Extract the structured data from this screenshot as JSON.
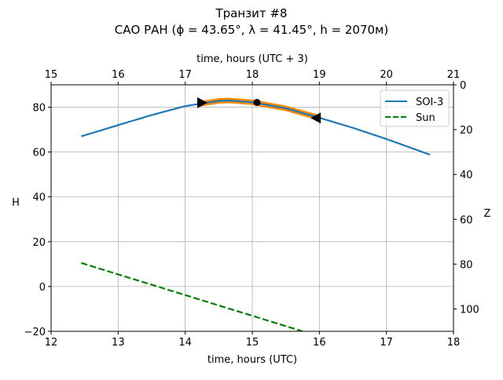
{
  "chart_data": {
    "type": "line",
    "title": [
      "Транзит #8",
      "САО РАН (ϕ = 43.65°, λ = 41.45°, h = 2070м)"
    ],
    "xlabel": "time, hours (UTC)",
    "xlabel_top": "time, hours (UTC + 3)",
    "ylabel": "H",
    "ylabel_right": "Z",
    "xlim": [
      12,
      18
    ],
    "xlim_top": [
      15,
      21
    ],
    "ylim": [
      -20,
      90
    ],
    "ylim_right": [
      110,
      0
    ],
    "xticks": [
      "12",
      "13",
      "14",
      "15",
      "16",
      "17",
      "18"
    ],
    "xticks_top": [
      "15",
      "16",
      "17",
      "18",
      "19",
      "20",
      "21"
    ],
    "yticks": [
      "-20",
      "0",
      "20",
      "40",
      "60",
      "80"
    ],
    "yticks_right": [
      "0",
      "20",
      "40",
      "60",
      "80",
      "100"
    ],
    "grid": true,
    "legend": {
      "position": "top-right",
      "entries": [
        "SOI-3",
        "Sun"
      ]
    },
    "series": [
      {
        "name": "SOI-3",
        "color": "#1f77b4",
        "style": "solid",
        "x": [
          12.45,
          13.0,
          13.5,
          14.0,
          14.5,
          14.65,
          15.0,
          15.5,
          16.0,
          16.5,
          17.0,
          17.65
        ],
        "y": [
          67.0,
          72.0,
          76.5,
          80.5,
          82.8,
          83.0,
          82.2,
          79.5,
          75.3,
          70.8,
          65.8,
          58.8
        ]
      },
      {
        "name": "Sun",
        "color": "#008000",
        "style": "dashed",
        "x": [
          12.45,
          15.75
        ],
        "y": [
          10.5,
          -20.0
        ]
      }
    ],
    "highlight": {
      "color": "#ff8c00",
      "x_start": 14.25,
      "x_end": 15.95
    },
    "markers": [
      {
        "type": "triangle-right",
        "x": 14.25,
        "y": 82.0
      },
      {
        "type": "circle",
        "x": 15.07,
        "y": 82.1
      },
      {
        "type": "triangle-left",
        "x": 15.95,
        "y": 75.2
      }
    ]
  }
}
